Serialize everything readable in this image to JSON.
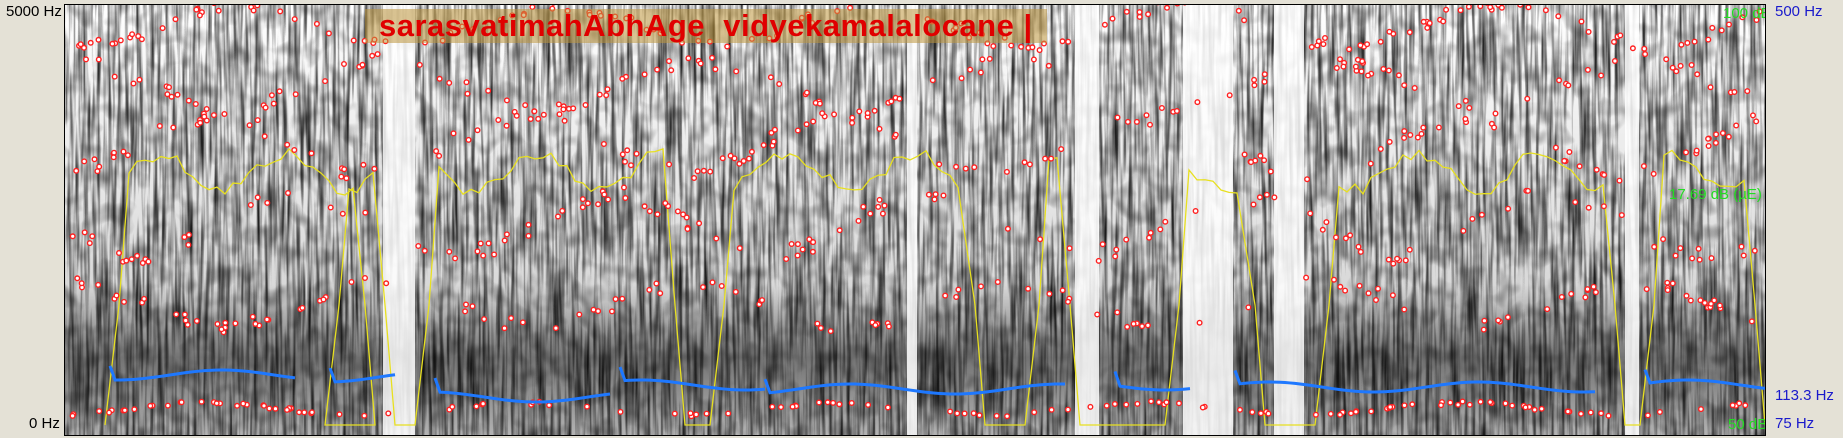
{
  "axes": {
    "freq_top": "5000 Hz",
    "freq_bottom": "0 Hz",
    "intensity_top": "100 dB",
    "intensity_bottom": "50 dB",
    "pitch_top": "500 Hz",
    "pitch_bottom": "75 Hz",
    "pitch_cursor": "113.3 Hz",
    "power_cursor": "17.69 dB (µE)"
  },
  "transcript": "sarasvatimahAbhAge  vidyekamalalocane |",
  "colors": {
    "formant_dot": "#ff2020",
    "pitch": "#1e78ff",
    "intensity": "#e8e020",
    "green_text": "#22dd22",
    "blue_text": "#1a1acc",
    "background": "#e4e1d6"
  }
}
